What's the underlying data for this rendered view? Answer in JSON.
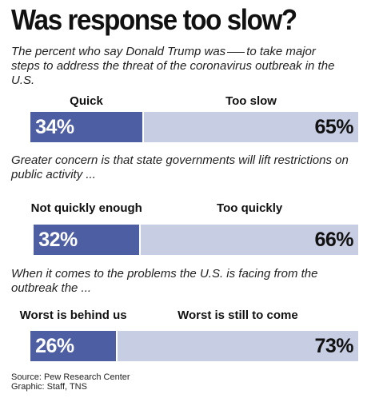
{
  "title": "Was response too slow?",
  "subtitle_pre": "The percent who say Donald Trump was",
  "subtitle_post_line1": "to take major",
  "subtitle_line2": "steps to address the threat of the coronavirus outbreak in the",
  "subtitle_line3": "U.S.",
  "chart_data": [
    {
      "type": "bar",
      "stacked": "horizontal-100",
      "categories": [
        "Quick",
        "Too slow"
      ],
      "values": [
        34,
        65
      ],
      "value_labels": [
        "34%",
        "65%"
      ],
      "colors": [
        "#4e5ea3",
        "#c7cde3"
      ]
    },
    {
      "type": "bar",
      "stacked": "horizontal-100",
      "question_line1": "Greater concern is that state governments will lift restrictions on",
      "question_line2": "public activity ...",
      "categories": [
        "Not quickly enough",
        "Too quickly"
      ],
      "values": [
        32,
        66
      ],
      "value_labels": [
        "32%",
        "66%"
      ],
      "colors": [
        "#4e5ea3",
        "#c7cde3"
      ]
    },
    {
      "type": "bar",
      "stacked": "horizontal-100",
      "question_line1": "When it comes to the problems the U.S. is facing from the",
      "question_line2": "outbreak the ...",
      "categories": [
        "Worst is behind us",
        "Worst is still to come"
      ],
      "values": [
        26,
        73
      ],
      "value_labels": [
        "26%",
        "73%"
      ],
      "colors": [
        "#4e5ea3",
        "#c7cde3"
      ]
    }
  ],
  "source": "Source: Pew Research Center",
  "credit": "Graphic: Staff, TNS"
}
